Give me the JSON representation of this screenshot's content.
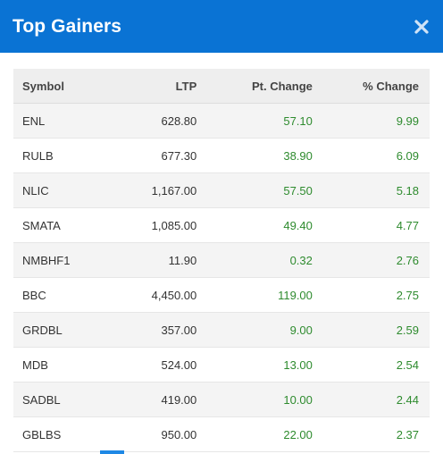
{
  "header": {
    "title": "Top Gainers",
    "close_icon": "close-icon"
  },
  "table": {
    "columns": [
      "Symbol",
      "LTP",
      "Pt. Change",
      "% Change"
    ],
    "rows": [
      {
        "symbol": "ENL",
        "ltp": "628.80",
        "pt_change": "57.10",
        "pct_change": "9.99"
      },
      {
        "symbol": "RULB",
        "ltp": "677.30",
        "pt_change": "38.90",
        "pct_change": "6.09"
      },
      {
        "symbol": "NLIC",
        "ltp": "1,167.00",
        "pt_change": "57.50",
        "pct_change": "5.18"
      },
      {
        "symbol": "SMATA",
        "ltp": "1,085.00",
        "pt_change": "49.40",
        "pct_change": "4.77"
      },
      {
        "symbol": "NMBHF1",
        "ltp": "11.90",
        "pt_change": "0.32",
        "pct_change": "2.76"
      },
      {
        "symbol": "BBC",
        "ltp": "4,450.00",
        "pt_change": "119.00",
        "pct_change": "2.75"
      },
      {
        "symbol": "GRDBL",
        "ltp": "357.00",
        "pt_change": "9.00",
        "pct_change": "2.59"
      },
      {
        "symbol": "MDB",
        "ltp": "524.00",
        "pt_change": "13.00",
        "pct_change": "2.54"
      },
      {
        "symbol": "SADBL",
        "ltp": "419.00",
        "pt_change": "10.00",
        "pct_change": "2.44"
      },
      {
        "symbol": "GBLBS",
        "ltp": "950.00",
        "pt_change": "22.00",
        "pct_change": "2.37"
      }
    ]
  },
  "colors": {
    "header_bg": "#0a73d4",
    "positive": "#2e8b2e",
    "scroll_accent": "#1e88e5"
  }
}
